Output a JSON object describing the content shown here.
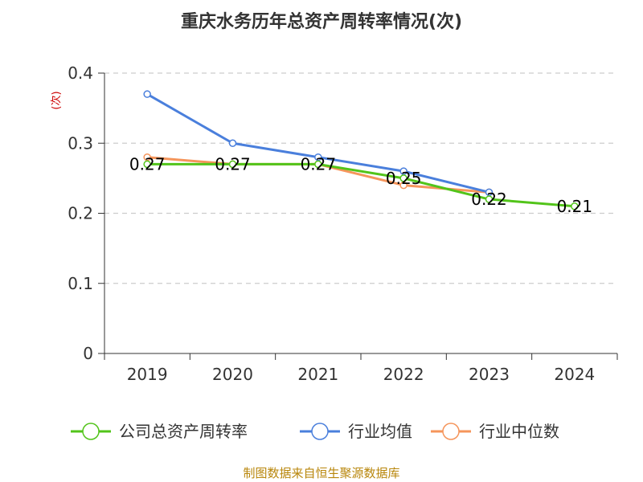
{
  "chart_data": {
    "type": "line",
    "title": "重庆水务历年总资产周转率情况(次)",
    "ylabel": "(次)",
    "xlabel": "",
    "categories": [
      "2019",
      "2020",
      "2021",
      "2022",
      "2023",
      "2024"
    ],
    "yticks": [
      "0",
      "0.1",
      "0.2",
      "0.3",
      "0.4"
    ],
    "ylim": [
      0,
      0.4
    ],
    "grid": true,
    "legend_position": "bottom",
    "series": [
      {
        "name": "公司总资产周转率",
        "color": "#52c41a",
        "values": [
          0.27,
          0.27,
          0.27,
          0.25,
          0.22,
          0.21
        ],
        "labels": [
          "0.27",
          "0.27",
          "0.27",
          "0.25",
          "0.22",
          "0.21"
        ]
      },
      {
        "name": "行业均值",
        "color": "#4a7fdc",
        "values": [
          0.37,
          0.3,
          0.28,
          0.26,
          0.23,
          null
        ]
      },
      {
        "name": "行业中位数",
        "color": "#f5955b",
        "values": [
          0.28,
          0.27,
          0.27,
          0.24,
          0.23,
          null
        ]
      }
    ],
    "source": "制图数据来自恒生聚源数据库"
  }
}
